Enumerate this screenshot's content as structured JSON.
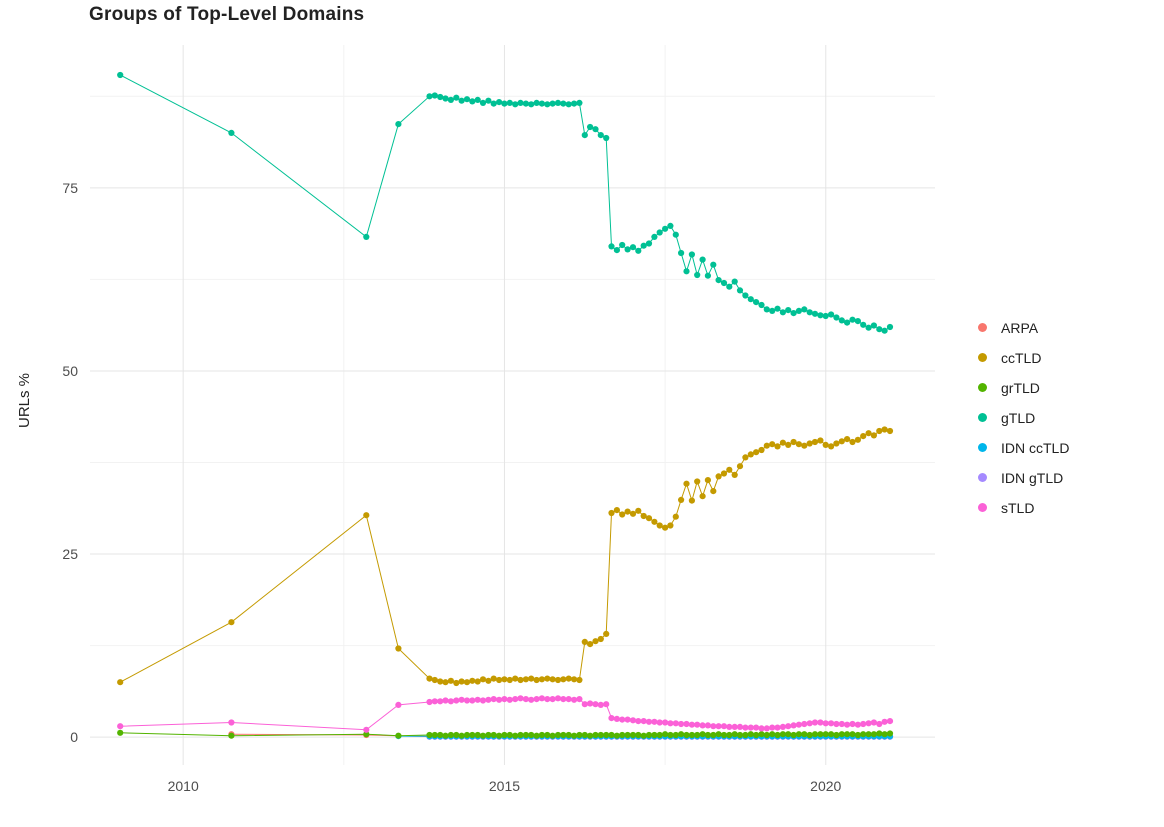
{
  "title": "Groups of Top-Level Domains",
  "chart_data": {
    "type": "line",
    "title": "Groups of Top-Level Domains",
    "xlabel": "",
    "ylabel": "URLs %",
    "x_domain": [
      2008.55,
      2021.7
    ],
    "y_domain": [
      -3.8,
      94.5
    ],
    "x_ticks": [
      2010,
      2015,
      2020
    ],
    "y_ticks": [
      0,
      25,
      50,
      75
    ],
    "x_minor": [
      2012.5,
      2017.5
    ],
    "y_minor": [
      12.5,
      37.5,
      62.5,
      87.5
    ],
    "grid": true,
    "legend_position": "right",
    "draw_order": [
      "ARPA",
      "IDN gTLD",
      "IDN ccTLD",
      "grTLD",
      "sTLD",
      "ccTLD",
      "gTLD"
    ],
    "series": [
      {
        "name": "ARPA",
        "color": "#F8766D",
        "sparse": [
          [
            2010.75,
            0.4
          ],
          [
            2012.85,
            0.3
          ]
        ],
        "dense": {
          "start": 2013.833,
          "step": 0.08333,
          "const": 0.08,
          "count": 87
        }
      },
      {
        "name": "ccTLD",
        "color": "#C49A00",
        "sparse": [
          [
            2009.02,
            7.5
          ],
          [
            2010.75,
            15.7
          ],
          [
            2012.85,
            30.3
          ],
          [
            2013.35,
            12.1
          ]
        ],
        "dense": {
          "start": 2013.833,
          "step": 0.08333,
          "values": [
            8.0,
            7.8,
            7.6,
            7.5,
            7.7,
            7.4,
            7.6,
            7.5,
            7.7,
            7.6,
            7.9,
            7.7,
            8.0,
            7.8,
            7.9,
            7.8,
            8.0,
            7.8,
            7.9,
            8.0,
            7.8,
            7.9,
            8.0,
            7.9,
            7.8,
            7.9,
            8.0,
            7.9,
            7.8,
            13.0,
            12.7,
            13.1,
            13.4,
            14.1,
            30.6,
            31.0,
            30.4,
            30.8,
            30.5,
            30.9,
            30.2,
            29.9,
            29.4,
            28.9,
            28.6,
            28.9,
            30.1,
            32.4,
            34.6,
            32.3,
            34.9,
            32.9,
            35.1,
            33.6,
            35.6,
            36.0,
            36.5,
            35.8,
            37.0,
            38.2,
            38.6,
            38.9,
            39.2,
            39.8,
            40.0,
            39.7,
            40.2,
            39.9,
            40.3,
            40.0,
            39.8,
            40.1,
            40.3,
            40.5,
            39.9,
            39.7,
            40.1,
            40.4,
            40.7,
            40.3,
            40.6,
            41.1,
            41.5,
            41.2,
            41.8,
            42.0,
            41.8
          ]
        }
      },
      {
        "name": "grTLD",
        "color": "#53B400",
        "sparse": [
          [
            2009.02,
            0.6
          ],
          [
            2010.75,
            0.2
          ],
          [
            2012.85,
            0.4
          ],
          [
            2013.35,
            0.2
          ]
        ],
        "dense": {
          "start": 2013.833,
          "step": 0.08333,
          "values": [
            0.3,
            0.3,
            0.3,
            0.2,
            0.3,
            0.3,
            0.2,
            0.3,
            0.3,
            0.3,
            0.2,
            0.3,
            0.3,
            0.2,
            0.3,
            0.3,
            0.2,
            0.3,
            0.3,
            0.3,
            0.2,
            0.3,
            0.3,
            0.2,
            0.3,
            0.3,
            0.3,
            0.2,
            0.3,
            0.3,
            0.2,
            0.3,
            0.3,
            0.3,
            0.3,
            0.2,
            0.3,
            0.3,
            0.3,
            0.3,
            0.2,
            0.3,
            0.3,
            0.3,
            0.4,
            0.3,
            0.3,
            0.4,
            0.3,
            0.3,
            0.3,
            0.4,
            0.3,
            0.3,
            0.4,
            0.3,
            0.3,
            0.4,
            0.3,
            0.3,
            0.4,
            0.3,
            0.4,
            0.3,
            0.4,
            0.3,
            0.4,
            0.4,
            0.3,
            0.4,
            0.4,
            0.3,
            0.4,
            0.4,
            0.4,
            0.4,
            0.3,
            0.4,
            0.4,
            0.4,
            0.3,
            0.4,
            0.4,
            0.4,
            0.5,
            0.4,
            0.5
          ]
        }
      },
      {
        "name": "gTLD",
        "color": "#00C094",
        "sparse": [
          [
            2009.02,
            90.4
          ],
          [
            2010.75,
            82.5
          ],
          [
            2012.85,
            68.3
          ],
          [
            2013.35,
            83.7
          ]
        ],
        "dense": {
          "start": 2013.833,
          "step": 0.08333,
          "values": [
            87.5,
            87.6,
            87.4,
            87.2,
            87.0,
            87.3,
            86.9,
            87.1,
            86.8,
            87.0,
            86.6,
            86.9,
            86.5,
            86.7,
            86.5,
            86.6,
            86.4,
            86.6,
            86.5,
            86.4,
            86.6,
            86.5,
            86.4,
            86.5,
            86.6,
            86.5,
            86.4,
            86.5,
            86.6,
            82.2,
            83.3,
            83.0,
            82.2,
            81.8,
            67.0,
            66.5,
            67.2,
            66.6,
            66.9,
            66.4,
            67.1,
            67.4,
            68.3,
            68.9,
            69.4,
            69.8,
            68.6,
            66.1,
            63.6,
            65.9,
            63.1,
            65.2,
            63.0,
            64.5,
            62.4,
            62.0,
            61.5,
            62.2,
            61.0,
            60.3,
            59.8,
            59.4,
            59.0,
            58.4,
            58.2,
            58.5,
            58.0,
            58.3,
            57.9,
            58.2,
            58.4,
            58.0,
            57.8,
            57.6,
            57.5,
            57.7,
            57.3,
            56.9,
            56.6,
            57.0,
            56.8,
            56.3,
            55.9,
            56.2,
            55.7,
            55.5,
            56.0
          ]
        }
      },
      {
        "name": "IDN ccTLD",
        "color": "#00B6EB",
        "sparse": [
          [
            2013.35,
            0.15
          ]
        ],
        "dense": {
          "start": 2013.833,
          "step": 0.08333,
          "const": 0.12,
          "count": 87
        }
      },
      {
        "name": "IDN gTLD",
        "color": "#A58AFF",
        "sparse": [],
        "dense": {
          "start": 2013.833,
          "step": 0.08333,
          "const": 0.05,
          "count": 87
        }
      },
      {
        "name": "sTLD",
        "color": "#FB61D7",
        "sparse": [
          [
            2009.02,
            1.5
          ],
          [
            2010.75,
            2.0
          ],
          [
            2012.85,
            1.0
          ],
          [
            2013.35,
            4.4
          ]
        ],
        "dense": {
          "start": 2013.833,
          "step": 0.08333,
          "values": [
            4.8,
            4.9,
            4.9,
            5.0,
            4.9,
            5.0,
            5.1,
            5.0,
            5.0,
            5.1,
            5.0,
            5.1,
            5.2,
            5.1,
            5.2,
            5.1,
            5.2,
            5.3,
            5.2,
            5.1,
            5.2,
            5.3,
            5.2,
            5.2,
            5.3,
            5.2,
            5.2,
            5.1,
            5.2,
            4.5,
            4.6,
            4.5,
            4.4,
            4.5,
            2.6,
            2.5,
            2.4,
            2.4,
            2.3,
            2.2,
            2.2,
            2.1,
            2.1,
            2.0,
            2.0,
            1.9,
            1.9,
            1.8,
            1.8,
            1.7,
            1.7,
            1.6,
            1.6,
            1.5,
            1.5,
            1.5,
            1.4,
            1.4,
            1.4,
            1.3,
            1.3,
            1.3,
            1.2,
            1.2,
            1.3,
            1.3,
            1.4,
            1.5,
            1.6,
            1.7,
            1.8,
            1.9,
            2.0,
            2.0,
            1.9,
            1.9,
            1.8,
            1.8,
            1.7,
            1.8,
            1.7,
            1.8,
            1.9,
            2.0,
            1.8,
            2.1,
            2.2
          ]
        }
      }
    ]
  },
  "legend": {
    "items": [
      {
        "label": "ARPA",
        "color": "#F8766D"
      },
      {
        "label": "ccTLD",
        "color": "#C49A00"
      },
      {
        "label": "grTLD",
        "color": "#53B400"
      },
      {
        "label": "gTLD",
        "color": "#00C094"
      },
      {
        "label": "IDN ccTLD",
        "color": "#00B6EB"
      },
      {
        "label": "IDN gTLD",
        "color": "#A58AFF"
      },
      {
        "label": "sTLD",
        "color": "#FB61D7"
      }
    ]
  },
  "colors": {
    "grid_major": "#e5e5e5",
    "grid_minor": "#f2f2f2",
    "tick_text": "#4d4d4d",
    "title_text": "#222222"
  }
}
